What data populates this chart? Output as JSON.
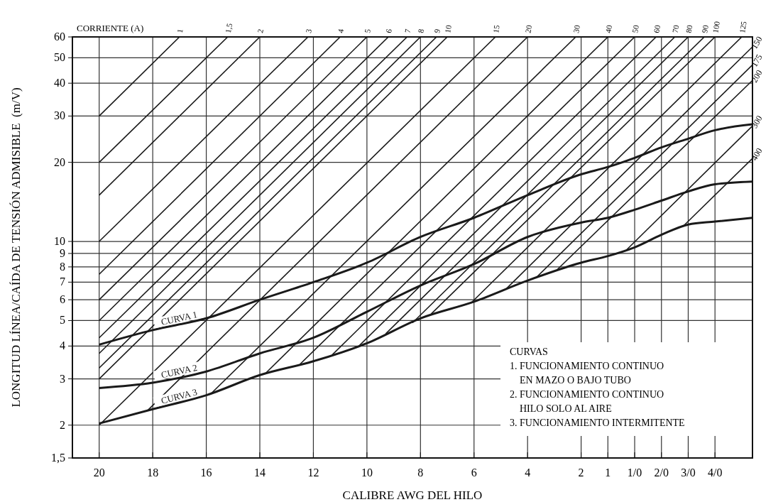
{
  "chart_data": {
    "type": "line",
    "xlabel": "CALIBRE AWG DEL HILO",
    "ylabel": "LONGITUD LÍNEA/CAÍDA DE TENSIÓN ADMISIBLE  (m/V)",
    "annotations": [
      "CORRIENTE (A)",
      "CURVAS\n1. FUNCIONAMIENTO CONTINUO\n    EN MAZO O BAJO TUBO\n2. FUNCIONAMIENTO CONTINUO\n    HILO SOLO AL AIRE\n3. FUNCIONAMIENTO INTERMITENTE"
    ],
    "log": "y",
    "grid": true,
    "legend": false,
    "marker": "none",
    "line_style": "solid",
    "xlim": [
      21,
      -4.4
    ],
    "ylim": [
      1.5,
      60
    ],
    "xticks": [
      20,
      18,
      16,
      14,
      12,
      10,
      8,
      6,
      4,
      2,
      1,
      {
        "value": 0,
        "label": "1/0"
      },
      {
        "value": -1,
        "label": "2/0"
      },
      {
        "value": -2,
        "label": "3/0"
      },
      {
        "value": -3,
        "label": "4/0"
      }
    ],
    "yticks": [
      {
        "value": 1.5,
        "label": "1,5"
      },
      2,
      3,
      4,
      5,
      6,
      7,
      8,
      9,
      10,
      20,
      30,
      40,
      50,
      60
    ],
    "series": [
      {
        "name": "CURVA 1",
        "color": "#1a1a1a",
        "x": [
          20,
          18,
          16,
          14,
          12,
          10,
          8,
          6,
          4,
          2,
          1,
          0,
          -1,
          -2,
          -3,
          -4.4
        ],
        "values": [
          4.05,
          4.6,
          5.1,
          6.0,
          7.0,
          8.3,
          10.4,
          12.3,
          15.0,
          18.0,
          19.2,
          20.8,
          22.8,
          24.6,
          26.5,
          27.9
        ]
      },
      {
        "name": "CURVA 2",
        "color": "#1a1a1a",
        "x": [
          20,
          18,
          16,
          14,
          12,
          10,
          8,
          6,
          4,
          2,
          1,
          0,
          -1,
          -2,
          -3,
          -4.4
        ],
        "values": [
          2.77,
          2.9,
          3.2,
          3.75,
          4.3,
          5.4,
          6.8,
          8.2,
          10.4,
          11.8,
          12.3,
          13.2,
          14.3,
          15.5,
          16.5,
          16.9
        ]
      },
      {
        "name": "CURVA 3",
        "color": "#1a1a1a",
        "x": [
          20,
          18,
          16,
          14,
          12,
          10,
          8,
          6,
          4,
          2,
          1,
          0,
          -1,
          -2,
          -3,
          -4.4
        ],
        "values": [
          2.03,
          2.3,
          2.6,
          3.1,
          3.5,
          4.1,
          5.1,
          5.9,
          7.1,
          8.3,
          8.8,
          9.5,
          10.6,
          11.6,
          11.9,
          12.3
        ]
      },
      {
        "name": "1",
        "color": "#1a1a1a",
        "x": [
          20,
          17.0
        ],
        "values": [
          30,
          60
        ]
      },
      {
        "name": "1,5",
        "color": "#1a1a1a",
        "x": [
          20,
          15.2
        ],
        "values": [
          20,
          60
        ]
      },
      {
        "name": "2",
        "color": "#1a1a1a",
        "x": [
          20,
          14.0
        ],
        "values": [
          15,
          60
        ]
      },
      {
        "name": "3",
        "color": "#1a1a1a",
        "x": [
          20,
          12.2
        ],
        "values": [
          10,
          60
        ]
      },
      {
        "name": "4",
        "color": "#1a1a1a",
        "x": [
          20,
          11.0
        ],
        "values": [
          7.5,
          60
        ]
      },
      {
        "name": "5",
        "color": "#1a1a1a",
        "x": [
          20,
          10.0
        ],
        "values": [
          6,
          60
        ]
      },
      {
        "name": "6",
        "color": "#1a1a1a",
        "x": [
          20,
          9.2
        ],
        "values": [
          5,
          60
        ]
      },
      {
        "name": "7",
        "color": "#1a1a1a",
        "x": [
          20,
          8.5
        ],
        "values": [
          4.3,
          60
        ]
      },
      {
        "name": "8",
        "color": "#1a1a1a",
        "x": [
          20,
          8.0
        ],
        "values": [
          3.75,
          60
        ]
      },
      {
        "name": "9",
        "color": "#1a1a1a",
        "x": [
          20,
          7.4
        ],
        "values": [
          3.3,
          60
        ]
      },
      {
        "name": "10",
        "color": "#1a1a1a",
        "x": [
          20,
          7.0
        ],
        "values": [
          3.0,
          60
        ]
      },
      {
        "name": "15",
        "color": "#1a1a1a",
        "x": [
          20,
          5.2
        ],
        "values": [
          2.0,
          60
        ]
      },
      {
        "name": "20",
        "color": "#1a1a1a",
        "x": [
          18.2,
          4.0
        ],
        "values": [
          2.27,
          60
        ]
      },
      {
        "name": "30",
        "color": "#1a1a1a",
        "x": [
          15.8,
          2.2
        ],
        "values": [
          2.65,
          60
        ]
      },
      {
        "name": "40",
        "color": "#1a1a1a",
        "x": [
          13.8,
          1.0
        ],
        "values": [
          3.14,
          60
        ]
      },
      {
        "name": "50",
        "color": "#1a1a1a",
        "x": [
          12.5,
          0.0
        ],
        "values": [
          3.41,
          60
        ]
      },
      {
        "name": "60",
        "color": "#1a1a1a",
        "x": [
          11.3,
          -0.8
        ],
        "values": [
          3.7,
          60
        ]
      },
      {
        "name": "70",
        "color": "#1a1a1a",
        "x": [
          10.3,
          -1.5
        ],
        "values": [
          4.0,
          60
        ]
      },
      {
        "name": "80",
        "color": "#1a1a1a",
        "x": [
          9.3,
          -2.0
        ],
        "values": [
          4.45,
          60
        ]
      },
      {
        "name": "90",
        "color": "#1a1a1a",
        "x": [
          8.3,
          -2.6
        ],
        "values": [
          4.9,
          60
        ]
      },
      {
        "name": "100",
        "color": "#1a1a1a",
        "x": [
          7.6,
          -3.0
        ],
        "values": [
          5.3,
          60
        ]
      },
      {
        "name": "125",
        "color": "#1a1a1a",
        "x": [
          6.1,
          -4.0
        ],
        "values": [
          5.85,
          60
        ]
      },
      {
        "name": "150",
        "color": "#1a1a1a",
        "x": [
          4.8,
          -4.4
        ],
        "values": [
          6.6,
          55
        ]
      },
      {
        "name": "175",
        "color": "#1a1a1a",
        "x": [
          3.7,
          -4.4
        ],
        "values": [
          7.25,
          47
        ]
      },
      {
        "name": "200",
        "color": "#1a1a1a",
        "x": [
          2.9,
          -4.4
        ],
        "values": [
          7.8,
          41
        ]
      },
      {
        "name": "300",
        "color": "#1a1a1a",
        "x": [
          0.3,
          -4.4
        ],
        "values": [
          9.3,
          27.5
        ]
      },
      {
        "name": "400",
        "color": "#1a1a1a",
        "x": [
          -1.8,
          -4.4
        ],
        "values": [
          11.4,
          20.7
        ]
      }
    ]
  }
}
